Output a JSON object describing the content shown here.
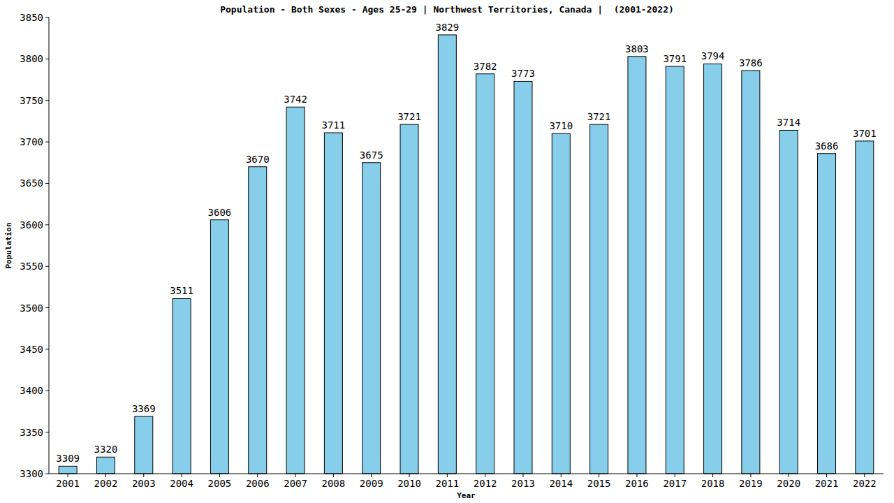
{
  "chart_data": {
    "type": "bar",
    "title": "Population - Both Sexes - Ages 25-29 | Northwest Territories, Canada |  (2001-2022)",
    "x_label": "Year",
    "y_label": "Population",
    "categories": [
      "2001",
      "2002",
      "2003",
      "2004",
      "2005",
      "2006",
      "2007",
      "2008",
      "2009",
      "2010",
      "2011",
      "2012",
      "2013",
      "2014",
      "2015",
      "2016",
      "2017",
      "2018",
      "2019",
      "2020",
      "2021",
      "2022"
    ],
    "values": [
      3309,
      3320,
      3369,
      3511,
      3606,
      3670,
      3742,
      3711,
      3675,
      3721,
      3829,
      3782,
      3773,
      3710,
      3721,
      3803,
      3791,
      3794,
      3786,
      3714,
      3686,
      3701
    ],
    "color": "#87ceeb",
    "ylim": [
      3300,
      3850
    ],
    "yticks": [
      3300,
      3350,
      3400,
      3450,
      3500,
      3550,
      3600,
      3650,
      3700,
      3750,
      3800,
      3850
    ],
    "grid": false,
    "data_labels": true
  }
}
